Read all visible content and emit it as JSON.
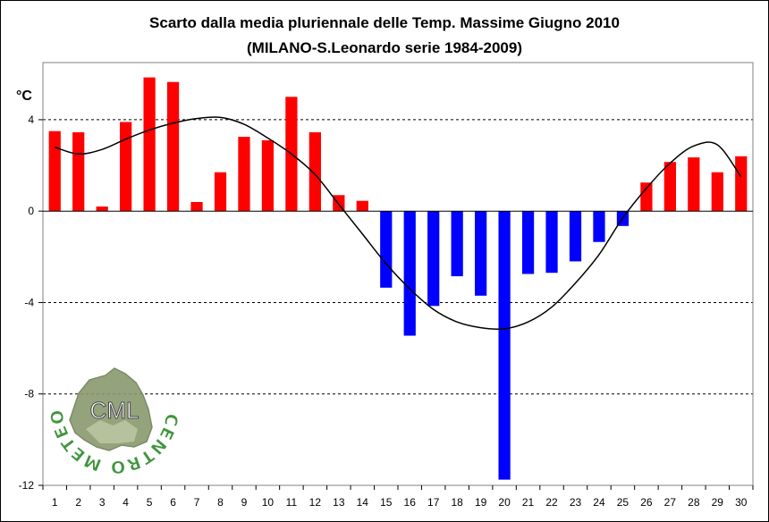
{
  "chart_data": {
    "type": "bar",
    "title": "Scarto dalla media pluriennale delle Temp. Massime Giugno 2010",
    "subtitle": "(MILANO-S.Leonardo serie 1984-2009)",
    "ylabel": "°C",
    "xlabel": "",
    "ylim": [
      -12,
      6.5
    ],
    "yticks": [
      4,
      0,
      -4,
      -8,
      -12
    ],
    "categories": [
      "1",
      "2",
      "3",
      "4",
      "5",
      "6",
      "7",
      "8",
      "9",
      "10",
      "11",
      "12",
      "13",
      "14",
      "15",
      "16",
      "17",
      "18",
      "19",
      "20",
      "21",
      "22",
      "23",
      "24",
      "25",
      "26",
      "27",
      "28",
      "29",
      "30"
    ],
    "values": [
      3.5,
      3.45,
      0.2,
      3.9,
      5.85,
      5.65,
      0.4,
      1.7,
      3.25,
      3.1,
      5.0,
      3.45,
      0.7,
      0.45,
      -3.35,
      -5.45,
      -4.15,
      -2.85,
      -3.7,
      -11.75,
      -2.75,
      -2.7,
      -2.2,
      -1.35,
      -0.65,
      1.25,
      2.15,
      2.35,
      1.7,
      2.4
    ],
    "colors": {
      "positive": "#ff0000",
      "negative": "#0000ff",
      "trend": "#000000"
    },
    "trend": {
      "type": "polynomial fit",
      "values": [
        2.8,
        2.5,
        2.7,
        3.15,
        3.55,
        3.85,
        4.05,
        4.1,
        3.8,
        3.2,
        2.5,
        1.6,
        0.3,
        -1.0,
        -2.3,
        -3.4,
        -4.3,
        -4.85,
        -5.1,
        -5.15,
        -4.85,
        -4.2,
        -3.15,
        -1.9,
        -0.3,
        1.0,
        2.1,
        2.85,
        2.9,
        1.5
      ]
    },
    "grid": "dashed horizontal at labelled ticks",
    "legend": "none"
  },
  "watermark": {
    "ring_text": "CENTRO METEO LOMBARDO",
    "center_text": "CML"
  }
}
